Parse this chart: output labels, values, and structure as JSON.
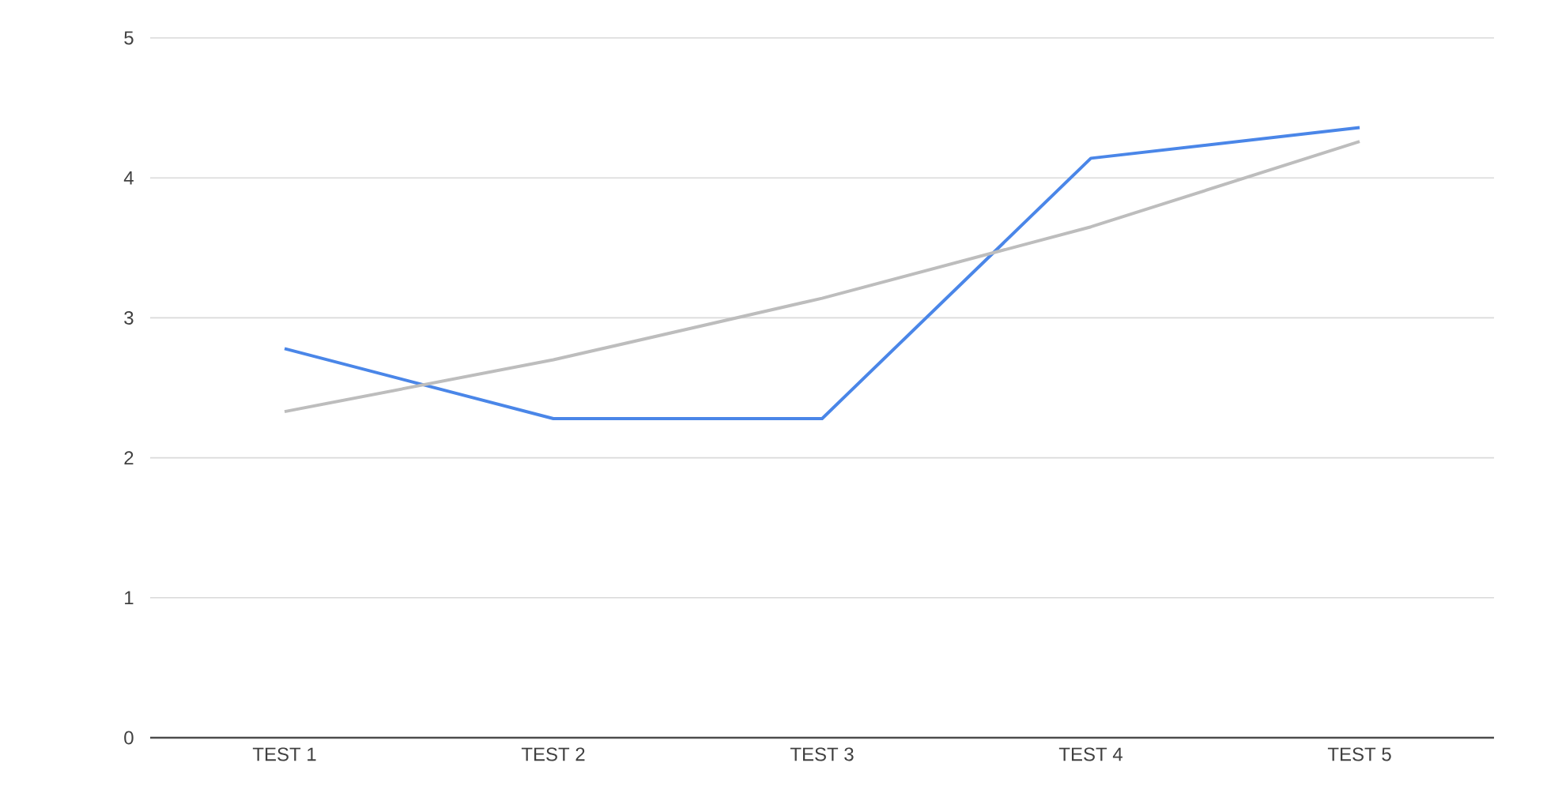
{
  "chart_data": {
    "type": "line",
    "categories": [
      "TEST 1",
      "TEST 2",
      "TEST 3",
      "TEST 4",
      "TEST 5"
    ],
    "series": [
      {
        "color": "#4a86e8",
        "values": [
          2.78,
          2.28,
          2.28,
          4.14,
          4.36
        ]
      },
      {
        "type": "line",
        "color": "#bdbdbd",
        "values": [
          2.33,
          2.7,
          3.14,
          3.65,
          4.26
        ]
      }
    ],
    "ylim": [
      0,
      5
    ],
    "yticks": [
      0,
      1,
      2,
      3,
      4,
      5
    ],
    "grid": "y",
    "marker": "none",
    "line_style": "solid"
  }
}
